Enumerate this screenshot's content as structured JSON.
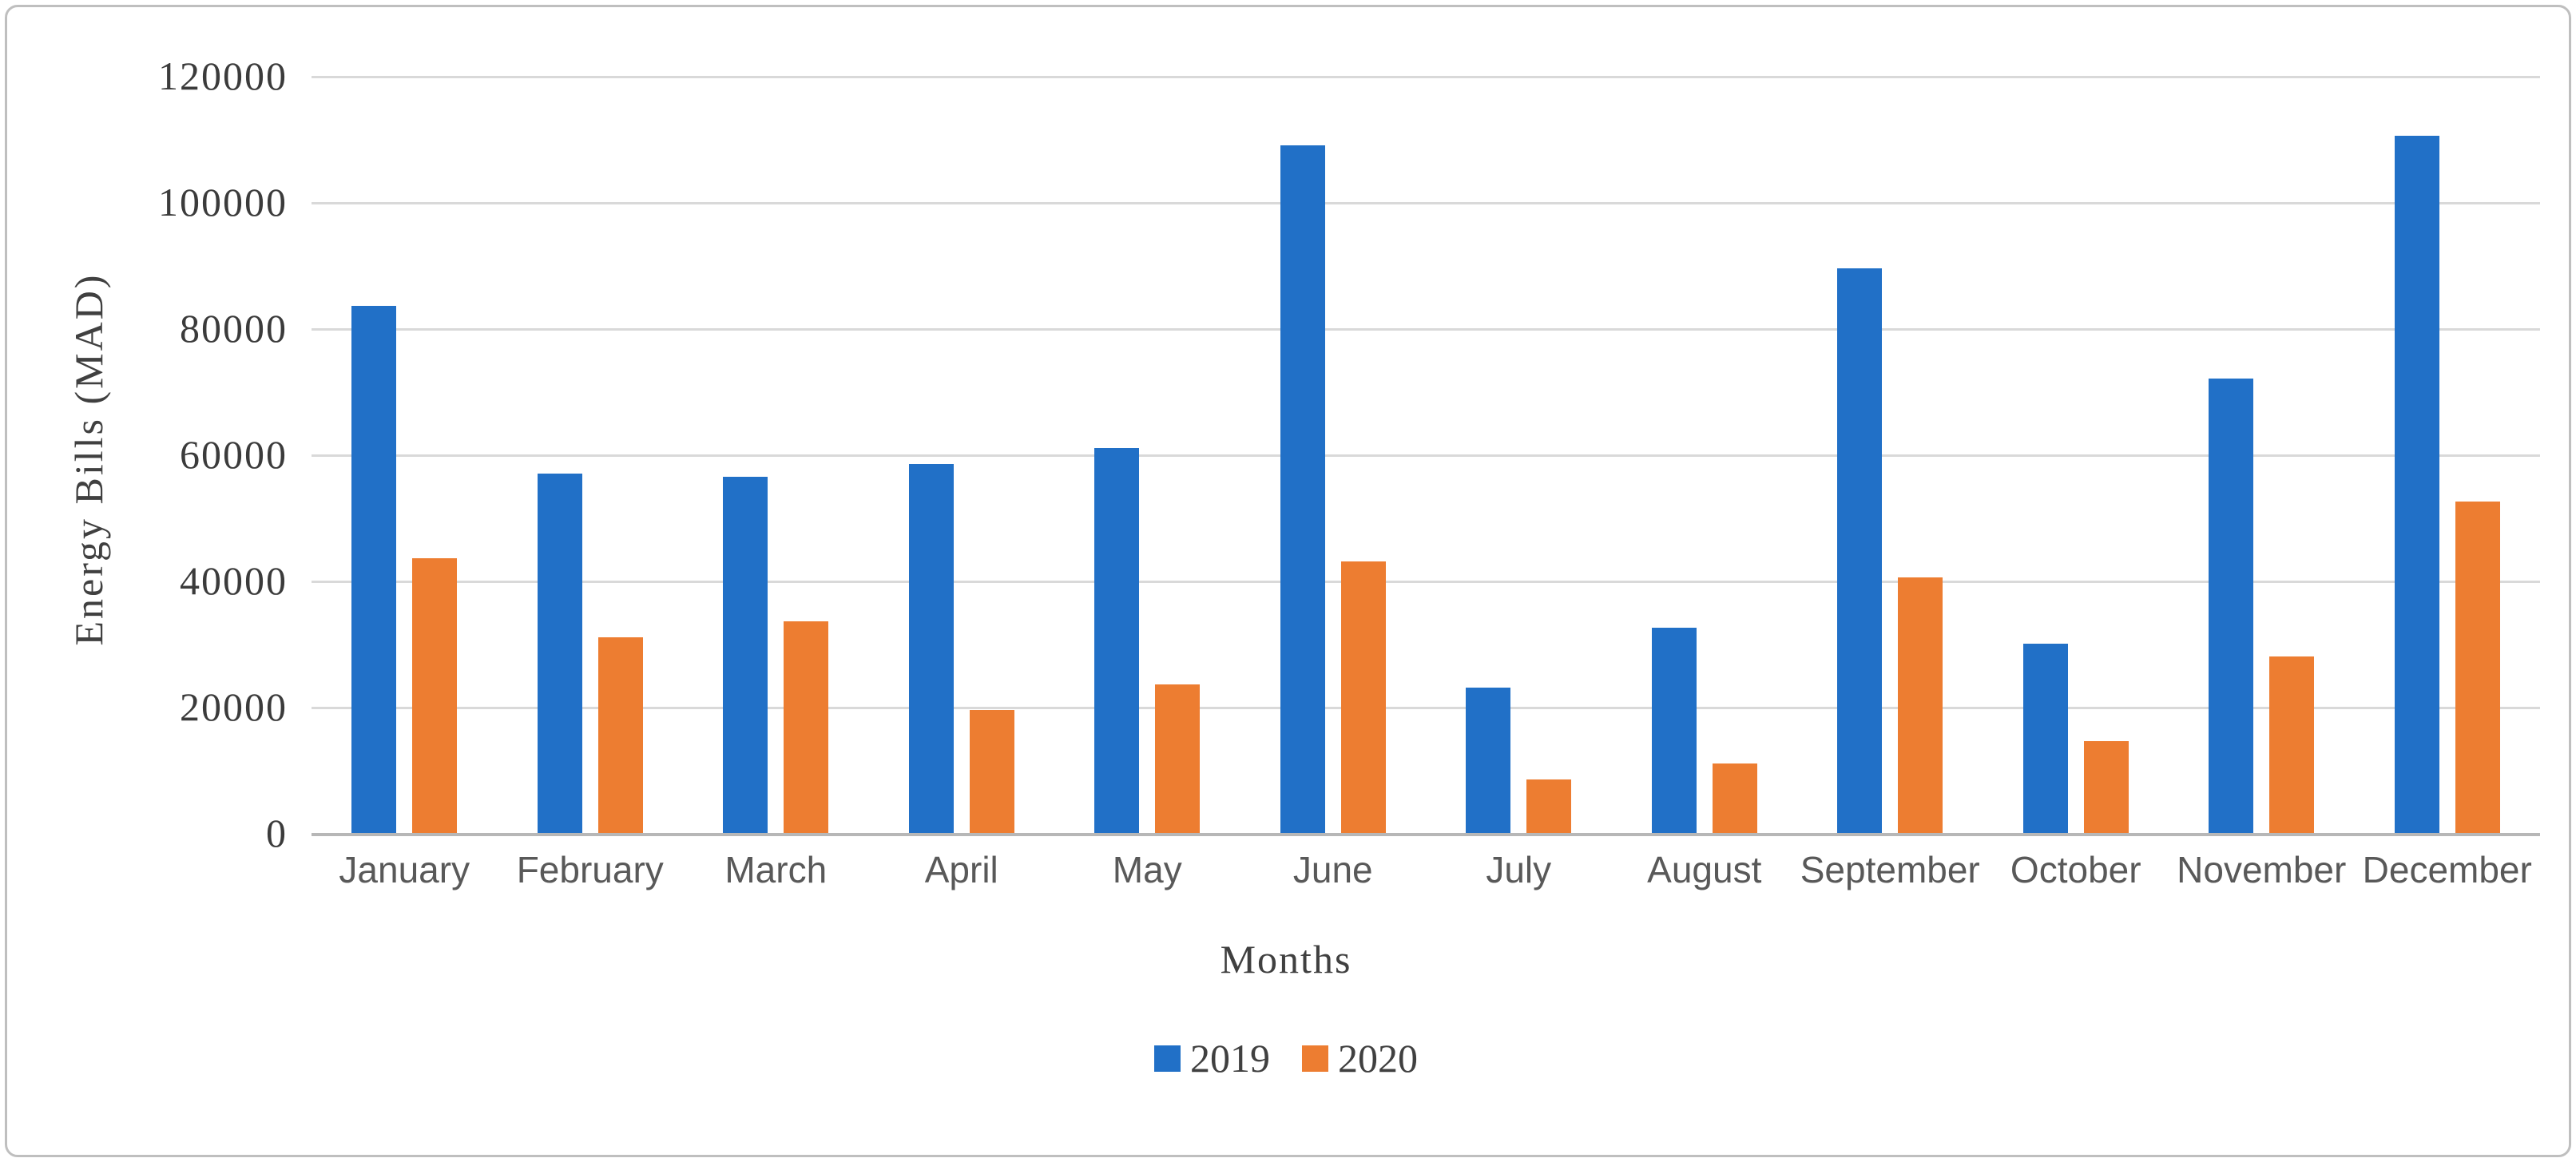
{
  "chart_data": {
    "type": "bar",
    "title": "",
    "categories": [
      "January",
      "February",
      "March",
      "April",
      "May",
      "June",
      "July",
      "August",
      "September",
      "October",
      "November",
      "December"
    ],
    "series": [
      {
        "name": "2019",
        "color": "#2170c7",
        "values": [
          83500,
          57000,
          56500,
          58500,
          61000,
          109000,
          23000,
          32500,
          89500,
          30000,
          72000,
          110500
        ]
      },
      {
        "name": "2020",
        "color": "#ed7d31",
        "values": [
          43500,
          31000,
          33500,
          19500,
          23500,
          43000,
          8500,
          11000,
          40500,
          14500,
          28000,
          52500
        ]
      }
    ],
    "xlabel": "Months",
    "ylabel": "Energy Bills (MAD)",
    "ylim": [
      0,
      120000
    ],
    "ytick_step": 20000,
    "yticks": [
      "0",
      "20000",
      "40000",
      "60000",
      "80000",
      "100000",
      "120000"
    ],
    "grid": true,
    "legend_position": "bottom",
    "colors": {
      "gridline": "#d9d9d9",
      "axis_line": "#b7b7b7",
      "ytick_text": "#3b3b3b",
      "xtick_text": "#595959",
      "title_text": "#404040"
    }
  }
}
